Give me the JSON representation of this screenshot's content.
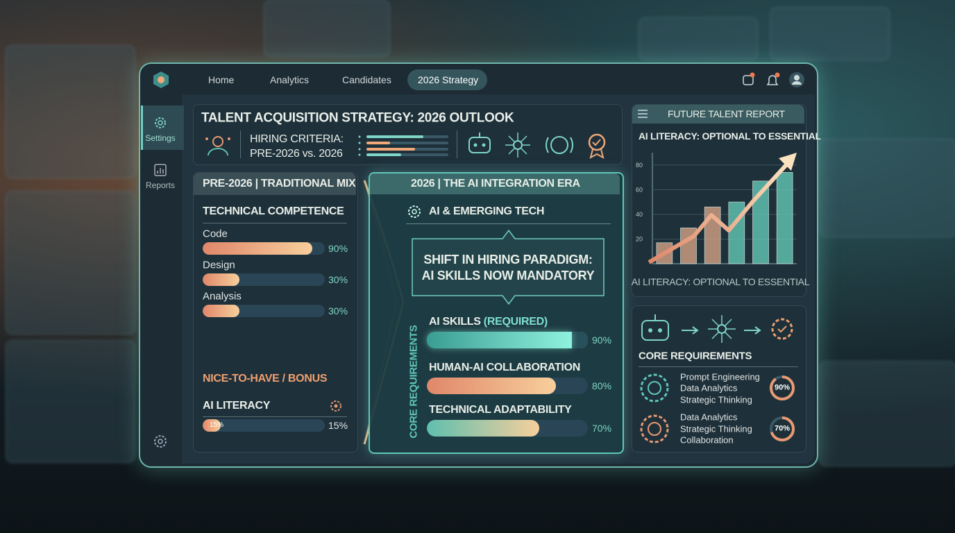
{
  "nav": {
    "tabs": [
      "Home",
      "Analytics",
      "Candidates",
      "2026 Strategy"
    ]
  },
  "sidebar": {
    "items": [
      "Settings",
      "Reports"
    ]
  },
  "header": {
    "title": "TALENT ACQUISITION STRATEGY: 2026 OUTLOOK",
    "criteria_label": "HIRING CRITERIA:",
    "criteria_sub": "PRE-2026 vs. 2026"
  },
  "traditional": {
    "title": "PRE-2026 | TRADITIONAL MIX",
    "section": "TECHNICAL COMPETENCE",
    "skills": [
      {
        "label": "Code",
        "value": 90,
        "value_label": "90%"
      },
      {
        "label": "Design",
        "value": 30,
        "value_label": "30%"
      },
      {
        "label": "Analysis",
        "value": 30,
        "value_label": "30%"
      }
    ],
    "bonus_title": "NICE-TO-HAVE / BONUS",
    "bonus": {
      "label": "AI LITERACY",
      "value": 15,
      "value_label": "15%"
    }
  },
  "ai_era": {
    "title": "2026 | THE AI INTEGRATION ERA",
    "section": "AI & EMERGING TECH",
    "callout": [
      "SHIFT IN HIRING PARADIGM:",
      "AI SKILLS NOW MANDATORY"
    ],
    "side_label": "CORE REQUIREMENTS",
    "skills": [
      {
        "label": "AI SKILLS",
        "tag": "(REQUIRED)",
        "value": 90,
        "value_label": "90%"
      },
      {
        "label": "HUMAN-AI COLLABORATION",
        "value": 80,
        "value_label": "80%"
      },
      {
        "label": "TECHNICAL ADAPTABILITY",
        "value": 70,
        "value_label": "70%"
      }
    ]
  },
  "report": {
    "title": "FUTURE TALENT REPORT",
    "chart": {
      "type": "bar",
      "title": "AI LITERACY: OPTIONAL TO ESSENTIAL",
      "caption": "AI LITERACY: OPTIONAL TO ESSENTIAL",
      "values": [
        17,
        29,
        46,
        50,
        67,
        74
      ],
      "ylim": [
        0,
        90
      ],
      "yticks": [
        20,
        40,
        60,
        80
      ],
      "color": "#5fbfae"
    }
  },
  "core": {
    "title": "CORE REQUIREMENTS",
    "items": [
      {
        "lines": [
          "Prompt Engineering",
          "Data Analytics",
          "Strategic Thinking"
        ],
        "value": 90,
        "value_label": "90%"
      },
      {
        "lines": [
          "Data Analytics",
          "Strategic Thinking",
          "Collaboration"
        ],
        "value": 70,
        "value_label": "70%"
      }
    ]
  }
}
